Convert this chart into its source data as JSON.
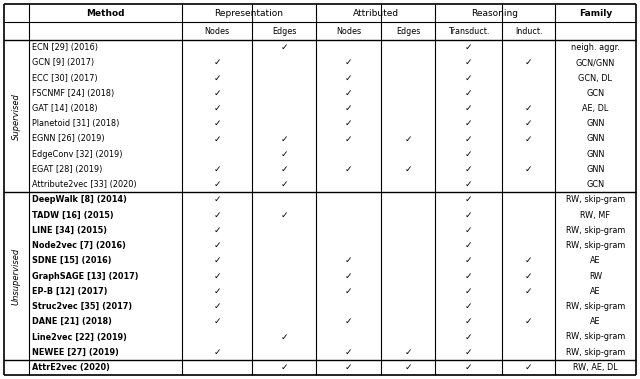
{
  "figsize": [
    6.4,
    3.79
  ],
  "dpi": 100,
  "supervised_rows": [
    [
      "ECN [29] (2016)",
      "",
      "✓",
      "",
      "",
      "✓",
      "",
      "neigh. aggr.",
      false
    ],
    [
      "GCN [9] (2017)",
      "✓",
      "",
      "✓",
      "",
      "✓",
      "✓",
      "GCN/GNN",
      false
    ],
    [
      "ECC [30] (2017)",
      "✓",
      "",
      "✓",
      "",
      "✓",
      "",
      "GCN, DL",
      false
    ],
    [
      "FSCNMF [24] (2018)",
      "✓",
      "",
      "✓",
      "",
      "✓",
      "",
      "GCN",
      false
    ],
    [
      "GAT [14] (2018)",
      "✓",
      "",
      "✓",
      "",
      "✓",
      "✓",
      "AE, DL",
      false
    ],
    [
      "Planetoid [31] (2018)",
      "✓",
      "",
      "✓",
      "",
      "✓",
      "✓",
      "GNN",
      false
    ],
    [
      "EGNN [26] (2019)",
      "✓",
      "✓",
      "✓",
      "✓",
      "✓",
      "✓",
      "GNN",
      false
    ],
    [
      "EdgeConv [32] (2019)",
      "",
      "✓",
      "",
      "",
      "✓",
      "",
      "GNN",
      false
    ],
    [
      "EGAT [28] (2019)",
      "✓",
      "✓",
      "✓",
      "✓",
      "✓",
      "✓",
      "GNN",
      false
    ],
    [
      "Attribute2vec [33] (2020)",
      "✓",
      "✓",
      "",
      "",
      "✓",
      "",
      "GCN",
      false
    ]
  ],
  "unsupervised_rows": [
    [
      "DeepWalk [8] (2014)",
      "✓",
      "",
      "",
      "",
      "✓",
      "",
      "RW, skip-gram",
      true
    ],
    [
      "TADW [16] (2015)",
      "✓",
      "✓",
      "",
      "",
      "✓",
      "",
      "RW, MF",
      true
    ],
    [
      "LINE [34] (2015)",
      "✓",
      "",
      "",
      "",
      "✓",
      "",
      "RW, skip-gram",
      true
    ],
    [
      "Node2vec [7] (2016)",
      "✓",
      "",
      "",
      "",
      "✓",
      "",
      "RW, skip-gram",
      true
    ],
    [
      "SDNE [15] (2016)",
      "✓",
      "",
      "✓",
      "",
      "✓",
      "✓",
      "AE",
      true
    ],
    [
      "GraphSAGE [13] (2017)",
      "✓",
      "",
      "✓",
      "",
      "✓",
      "✓",
      "RW",
      true
    ],
    [
      "EP-B [12] (2017)",
      "✓",
      "",
      "✓",
      "",
      "✓",
      "✓",
      "AE",
      true
    ],
    [
      "Struc2vec [35] (2017)",
      "✓",
      "",
      "",
      "",
      "✓",
      "",
      "RW, skip-gram",
      true
    ],
    [
      "DANE [21] (2018)",
      "✓",
      "",
      "✓",
      "",
      "✓",
      "✓",
      "AE",
      true
    ],
    [
      "Line2vec [22] (2019)",
      "",
      "✓",
      "",
      "",
      "✓",
      "",
      "RW, skip-gram",
      true
    ],
    [
      "NEWEE [27] (2019)",
      "✓",
      "",
      "✓",
      "✓",
      "✓",
      "",
      "RW, skip-gram",
      true
    ]
  ],
  "attredge_row": [
    "AttrE2vec (2020)",
    "",
    "✓",
    "✓",
    "✓",
    "✓",
    "✓",
    "RW, AE, DL",
    true
  ]
}
